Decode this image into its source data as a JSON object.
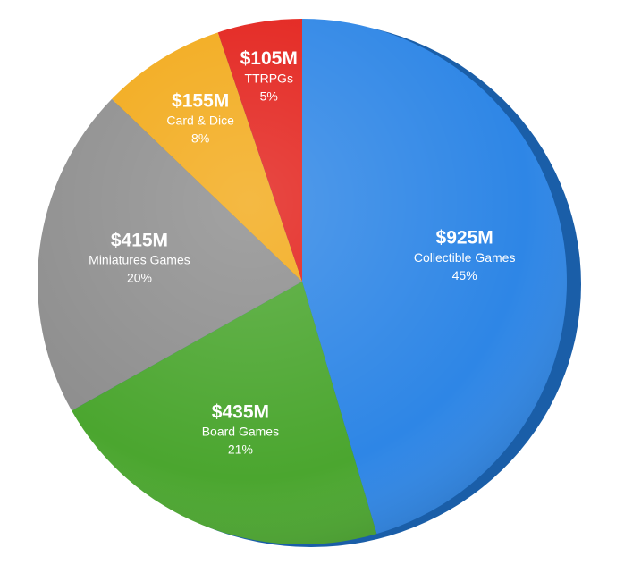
{
  "chart_data": {
    "type": "pie",
    "categories": [
      "Collectible Games",
      "Board Games",
      "Miniatures Games",
      "Card & Dice",
      "TTRPGs"
    ],
    "values": [
      925,
      435,
      415,
      155,
      105
    ],
    "value_labels": [
      "$925M",
      "$435M",
      "$415M",
      "$155M",
      "$105M"
    ],
    "percentages": [
      45,
      21,
      20,
      8,
      5
    ],
    "percentage_labels": [
      "45%",
      "21%",
      "20%",
      "8%",
      "5%"
    ],
    "colors": [
      "#2e86e6",
      "#4ba62f",
      "#8e8e8e",
      "#f2aa1a",
      "#e3211b"
    ]
  }
}
